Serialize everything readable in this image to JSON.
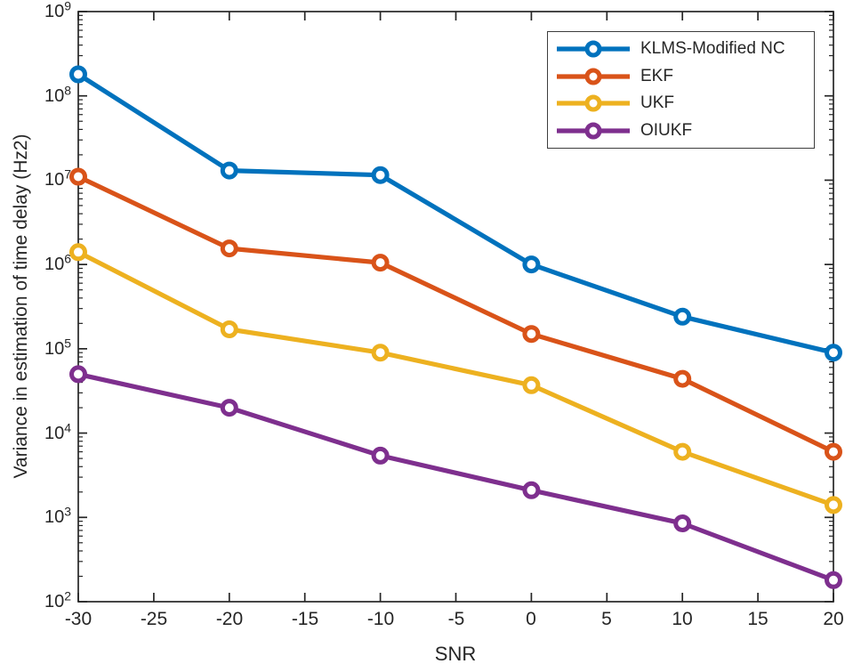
{
  "chart_data": {
    "type": "line",
    "title": "",
    "xlabel": "SNR",
    "ylabel": "Variance in estimation of time delay (Hz2)",
    "x": [
      -30,
      -20,
      -10,
      0,
      10,
      20
    ],
    "xlim": [
      -30,
      20
    ],
    "xticks": [
      -30,
      -25,
      -20,
      -15,
      -10,
      -5,
      0,
      5,
      10,
      15,
      20
    ],
    "yscale": "log",
    "ylim": [
      100,
      1000000000
    ],
    "ytick_exponents": [
      2,
      3,
      4,
      5,
      6,
      7,
      8,
      9
    ],
    "grid": false,
    "legend_position": "top-right",
    "marker": "circle",
    "axis_color": "#262626",
    "series": [
      {
        "name": "KLMS-Modified NC",
        "color": "#0072BD",
        "values": [
          180000000.0,
          13000000.0,
          11500000.0,
          1000000.0,
          240000.0,
          90000.0
        ]
      },
      {
        "name": "EKF",
        "color": "#D95319",
        "values": [
          11000000.0,
          1550000.0,
          1050000.0,
          150000.0,
          44000.0,
          6000.0
        ]
      },
      {
        "name": "UKF",
        "color": "#EDB120",
        "values": [
          1400000.0,
          170000.0,
          90000.0,
          37000.0,
          6000.0,
          1400.0
        ]
      },
      {
        "name": "OIUKF",
        "color": "#7E2F8E",
        "values": [
          50000.0,
          20000.0,
          5400.0,
          2100.0,
          850.0,
          180.0
        ]
      }
    ]
  }
}
